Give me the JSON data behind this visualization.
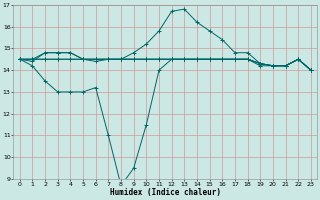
{
  "xlabel": "Humidex (Indice chaleur)",
  "bg_color": "#cce8e4",
  "grid_color": "#cc9999",
  "line_color": "#006666",
  "xlim": [
    -0.5,
    23.5
  ],
  "ylim": [
    9,
    17
  ],
  "yticks": [
    9,
    10,
    11,
    12,
    13,
    14,
    15,
    16,
    17
  ],
  "xticks": [
    0,
    1,
    2,
    3,
    4,
    5,
    6,
    7,
    8,
    9,
    10,
    11,
    12,
    13,
    14,
    15,
    16,
    17,
    18,
    19,
    20,
    21,
    22,
    23
  ],
  "series": [
    {
      "x": [
        0,
        1,
        2,
        3,
        4,
        5,
        6,
        7,
        8,
        9,
        10,
        11,
        12,
        13,
        14,
        15,
        16,
        17,
        18,
        19,
        20,
        21,
        22,
        23
      ],
      "y": [
        14.5,
        14.4,
        14.8,
        14.8,
        14.8,
        14.5,
        14.4,
        14.5,
        14.5,
        14.8,
        15.2,
        15.8,
        16.7,
        16.8,
        16.2,
        15.8,
        15.4,
        14.8,
        14.8,
        14.3,
        14.2,
        14.2,
        14.5,
        14.0
      ]
    },
    {
      "x": [
        0,
        1,
        2,
        3,
        4,
        5,
        6,
        7,
        8,
        9,
        10,
        11,
        12,
        13,
        14,
        15,
        16,
        17,
        18,
        19,
        20,
        21,
        22,
        23
      ],
      "y": [
        14.5,
        14.5,
        14.8,
        14.8,
        14.8,
        14.5,
        14.5,
        14.5,
        14.5,
        14.5,
        14.5,
        14.5,
        14.5,
        14.5,
        14.5,
        14.5,
        14.5,
        14.5,
        14.5,
        14.3,
        14.2,
        14.2,
        14.5,
        14.0
      ]
    },
    {
      "x": [
        0,
        1,
        2,
        3,
        4,
        5,
        6,
        7,
        8,
        9,
        10,
        11,
        12,
        13,
        14,
        15,
        16,
        17,
        18,
        19,
        20,
        21,
        22,
        23
      ],
      "y": [
        14.5,
        14.5,
        14.5,
        14.5,
        14.5,
        14.5,
        14.5,
        14.5,
        14.5,
        14.5,
        14.5,
        14.5,
        14.5,
        14.5,
        14.5,
        14.5,
        14.5,
        14.5,
        14.5,
        14.2,
        14.2,
        14.2,
        14.5,
        14.0
      ]
    },
    {
      "x": [
        0,
        1,
        2,
        3,
        4,
        5,
        6,
        7,
        8,
        9,
        10,
        11,
        12,
        13,
        14,
        15,
        16,
        17,
        18,
        19,
        20,
        21,
        22,
        23
      ],
      "y": [
        14.5,
        14.2,
        13.5,
        13.0,
        13.0,
        13.0,
        13.2,
        11.0,
        8.7,
        9.5,
        11.5,
        14.0,
        14.5,
        14.5,
        14.5,
        14.5,
        14.5,
        14.5,
        14.5,
        14.3,
        14.2,
        14.2,
        14.5,
        14.0
      ]
    },
    {
      "x": [
        0,
        1,
        2,
        3,
        4,
        5,
        6,
        7,
        8,
        9,
        10,
        11,
        12,
        13,
        14,
        15,
        16,
        17,
        18,
        19,
        20,
        21,
        22,
        23
      ],
      "y": [
        14.5,
        14.5,
        14.5,
        14.5,
        14.5,
        14.5,
        14.5,
        14.5,
        14.5,
        14.5,
        14.5,
        14.5,
        14.5,
        14.5,
        14.5,
        14.5,
        14.5,
        14.5,
        14.5,
        14.3,
        14.2,
        14.2,
        14.5,
        14.0
      ]
    }
  ]
}
